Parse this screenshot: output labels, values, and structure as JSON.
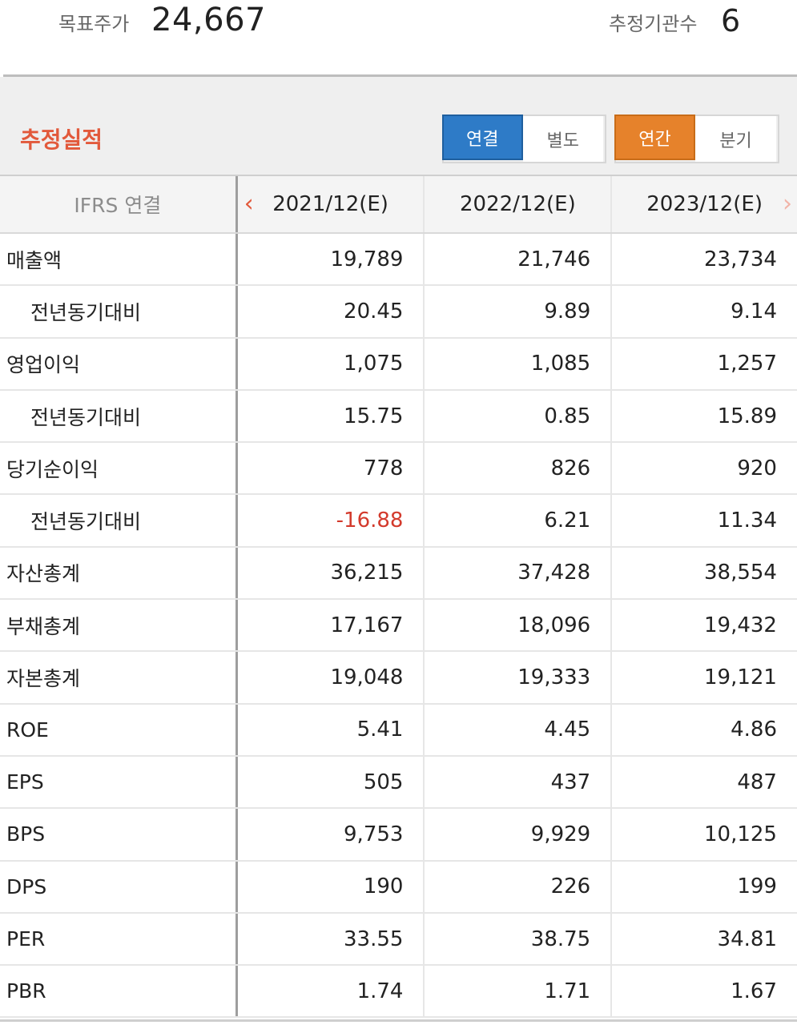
{
  "header": {
    "target_price_label": "목표주가",
    "target_price_value": "24,667",
    "institutions_label": "추정기관수",
    "institutions_value": "6"
  },
  "section": {
    "title": "추정실적",
    "toggle_basis": [
      "연결",
      "별도"
    ],
    "toggle_basis_selected": "연결",
    "toggle_period": [
      "연간",
      "분기"
    ],
    "toggle_period_selected": "연간"
  },
  "table": {
    "header_label": "IFRS 연결",
    "columns": [
      "2021/12(E)",
      "2022/12(E)",
      "2023/12(E)"
    ],
    "rows": [
      {
        "label": "매출액",
        "sub": false,
        "values": [
          "19,789",
          "21,746",
          "23,734"
        ]
      },
      {
        "label": "전년동기대비",
        "sub": true,
        "values": [
          "20.45",
          "9.89",
          "9.14"
        ]
      },
      {
        "label": "영업이익",
        "sub": false,
        "values": [
          "1,075",
          "1,085",
          "1,257"
        ]
      },
      {
        "label": "전년동기대비",
        "sub": true,
        "values": [
          "15.75",
          "0.85",
          "15.89"
        ]
      },
      {
        "label": "당기순이익",
        "sub": false,
        "values": [
          "778",
          "826",
          "920"
        ]
      },
      {
        "label": "전년동기대비",
        "sub": true,
        "values": [
          "-16.88",
          "6.21",
          "11.34"
        ]
      },
      {
        "label": "자산총계",
        "sub": false,
        "values": [
          "36,215",
          "37,428",
          "38,554"
        ]
      },
      {
        "label": "부채총계",
        "sub": false,
        "values": [
          "17,167",
          "18,096",
          "19,432"
        ]
      },
      {
        "label": "자본총계",
        "sub": false,
        "values": [
          "19,048",
          "19,333",
          "19,121"
        ]
      },
      {
        "label": "ROE",
        "sub": false,
        "values": [
          "5.41",
          "4.45",
          "4.86"
        ]
      },
      {
        "label": "EPS",
        "sub": false,
        "values": [
          "505",
          "437",
          "487"
        ]
      },
      {
        "label": "BPS",
        "sub": false,
        "values": [
          "9,753",
          "9,929",
          "10,125"
        ]
      },
      {
        "label": "DPS",
        "sub": false,
        "values": [
          "190",
          "226",
          "199"
        ]
      },
      {
        "label": "PER",
        "sub": false,
        "values": [
          "33.55",
          "38.75",
          "34.81"
        ]
      },
      {
        "label": "PBR",
        "sub": false,
        "values": [
          "1.74",
          "1.71",
          "1.67"
        ]
      }
    ]
  },
  "colors": {
    "accent_title": "#e2593b",
    "blue_active": "#2e7bc7",
    "orange_active": "#e6822b",
    "negative": "#d33a2c"
  },
  "icons": {
    "prev": "chevron-left-icon",
    "next": "chevron-right-icon"
  }
}
